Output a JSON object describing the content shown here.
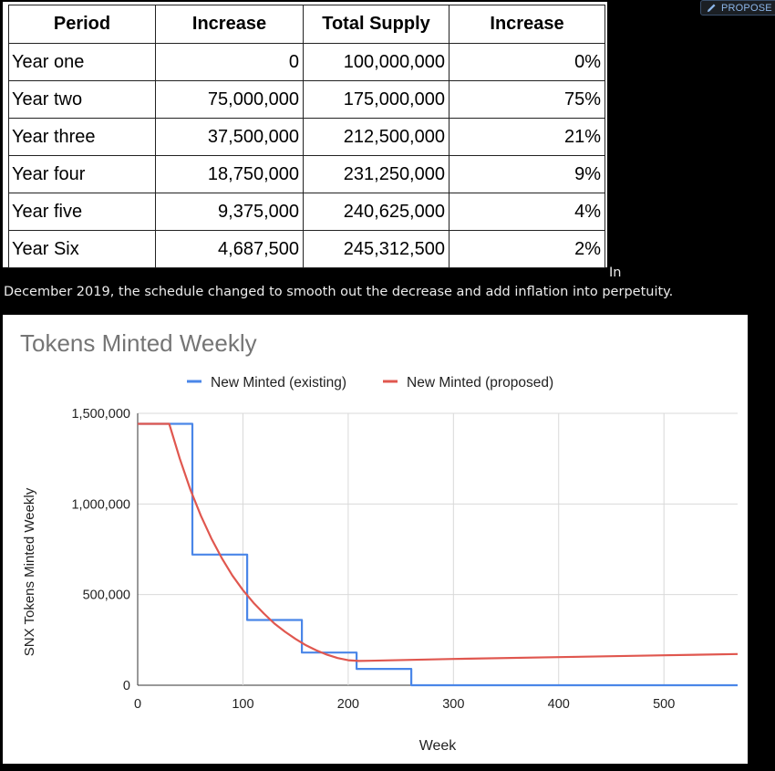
{
  "toolbar": {
    "propose_label": "PROPOSE",
    "propose_icon": "pencil-icon",
    "accent_color": "#8db7ea"
  },
  "table": {
    "headers": [
      "Period",
      "Increase",
      "Total Supply",
      "Increase"
    ],
    "rows": [
      [
        "Year one",
        "0",
        "100,000,000",
        "0%"
      ],
      [
        "Year two",
        "75,000,000",
        "175,000,000",
        "75%"
      ],
      [
        "Year three",
        "37,500,000",
        "212,500,000",
        "21%"
      ],
      [
        "Year four",
        "18,750,000",
        "231,250,000",
        "9%"
      ],
      [
        "Year five",
        "9,375,000",
        "240,625,000",
        "4%"
      ],
      [
        "Year Six",
        "4,687,500",
        "245,312,500",
        "2%"
      ]
    ]
  },
  "paragraph": {
    "line1": "In",
    "line2": "December 2019, the schedule changed to smooth out the decrease and add inflation into perpetuity."
  },
  "chart_data": {
    "type": "line",
    "title": "Tokens Minted Weekly",
    "xlabel": "Week",
    "ylabel": "SNX Tokens Minted Weekly",
    "xlim": [
      0,
      570
    ],
    "ylim": [
      0,
      1500000
    ],
    "xticks": [
      0,
      100,
      200,
      300,
      400,
      500
    ],
    "yticks": [
      0,
      500000,
      1000000,
      1500000
    ],
    "ytick_labels": [
      "0",
      "500,000",
      "1,000,000",
      "1,500,000"
    ],
    "grid": true,
    "legend": "top",
    "series": [
      {
        "name": "New Minted (existing)",
        "color": "#4a86e8",
        "x": [
          0,
          52,
          52,
          104,
          104,
          156,
          156,
          208,
          208,
          260,
          260,
          570
        ],
        "y": [
          1442000,
          1442000,
          721000,
          721000,
          360000,
          360000,
          180000,
          180000,
          90000,
          90000,
          0,
          0
        ]
      },
      {
        "name": "New Minted (proposed)",
        "color": "#e0574f",
        "x": [
          0,
          30,
          40,
          50,
          60,
          70,
          80,
          90,
          100,
          110,
          120,
          130,
          140,
          150,
          160,
          170,
          180,
          190,
          200,
          210,
          220,
          235,
          300,
          400,
          500,
          570
        ],
        "y": [
          1442000,
          1442000,
          1250000,
          1080000,
          935000,
          810000,
          700000,
          605000,
          525000,
          455000,
          395000,
          340000,
          295000,
          255000,
          220000,
          192000,
          168000,
          150000,
          138000,
          134000,
          135000,
          137000,
          145000,
          155000,
          165000,
          172000
        ]
      }
    ]
  }
}
